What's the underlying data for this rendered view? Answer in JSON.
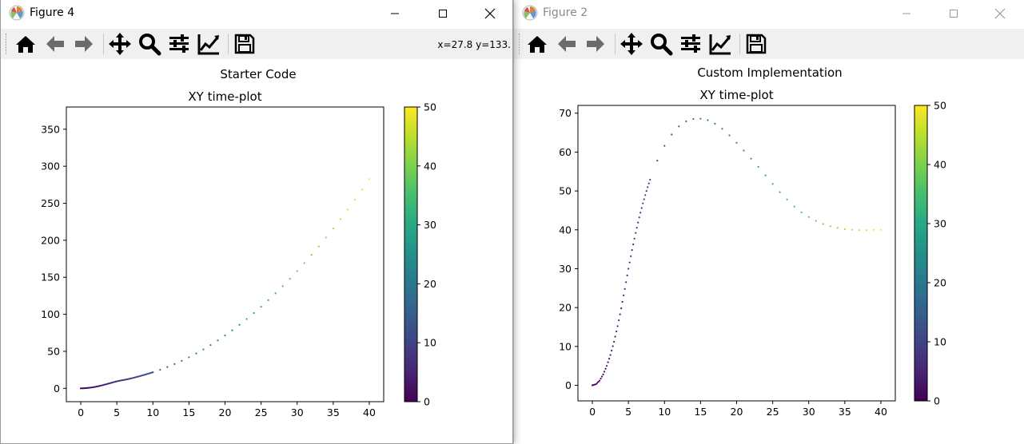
{
  "windows": [
    {
      "title": "Figure 4",
      "coords": "x=27.8 y=133.",
      "suptitle": "Starter Code",
      "chart_data": {
        "type": "scatter",
        "title": "XY time-plot",
        "xlabel": "",
        "ylabel": "",
        "xlim": [
          -2,
          42
        ],
        "ylim": [
          -18,
          380
        ],
        "xticks": [
          0,
          5,
          10,
          15,
          20,
          25,
          30,
          35,
          40
        ],
        "yticks": [
          0,
          50,
          100,
          150,
          200,
          250,
          300,
          350
        ],
        "x": [
          0,
          0.5,
          1,
          1.5,
          2,
          2.5,
          3,
          3.5,
          4,
          4.5,
          5,
          5.5,
          6,
          6.5,
          7,
          7.5,
          8,
          8.5,
          9,
          9.5,
          10,
          11,
          12,
          13,
          14,
          15,
          16,
          17,
          18,
          19,
          20,
          21,
          22,
          23,
          24,
          25,
          26,
          27,
          28,
          29,
          30,
          31,
          32,
          33,
          34,
          35,
          36,
          37,
          38,
          39,
          40
        ],
        "y": [
          0,
          0.2,
          0.6,
          1.2,
          2,
          3,
          4.2,
          5.5,
          6.8,
          8.2,
          9.5,
          10.5,
          11.4,
          12.4,
          13.5,
          14.7,
          16,
          17.4,
          18.8,
          20.2,
          21.8,
          25.1,
          28.8,
          32.8,
          37.2,
          42,
          47.1,
          52.6,
          58.5,
          64.8,
          71.4,
          78.4,
          85.8,
          93.6,
          101.7,
          110.2,
          119.1,
          128.4,
          138,
          148,
          158.4,
          169.2,
          180.3,
          191.8,
          203.7,
          215.9,
          228.5,
          241.5,
          254.8,
          268.5,
          282.6
        ]
      },
      "colorbar": {
        "min": 0,
        "max": 50,
        "ticks": [
          0,
          10,
          20,
          30,
          40,
          50
        ]
      }
    },
    {
      "title": "Figure 2",
      "suptitle": "Custom Implementation",
      "chart_data": {
        "type": "scatter",
        "title": "XY time-plot",
        "xlabel": "",
        "ylabel": "",
        "xlim": [
          -2,
          42
        ],
        "ylim": [
          -4,
          72
        ],
        "xticks": [
          0,
          5,
          10,
          15,
          20,
          25,
          30,
          35,
          40
        ],
        "yticks": [
          0,
          10,
          20,
          30,
          40,
          50,
          60,
          70
        ],
        "x": [
          0,
          0.5,
          1,
          1.5,
          2,
          2.5,
          3,
          3.5,
          4,
          4.5,
          5,
          5.5,
          6,
          6.5,
          7,
          7.5,
          8,
          9,
          10,
          11,
          12,
          13,
          14,
          15,
          16,
          17,
          18,
          19,
          20,
          21,
          22,
          23,
          24,
          25,
          26,
          27,
          28,
          29,
          30,
          31,
          32,
          33,
          34,
          35,
          36,
          37,
          38,
          39,
          40
        ],
        "y": [
          0,
          0.3,
          1.2,
          2.8,
          5,
          7.8,
          11.2,
          15.2,
          19.8,
          24.8,
          30,
          34.8,
          39.2,
          43.2,
          46.8,
          50,
          52.9,
          57.8,
          61.6,
          64.5,
          66.6,
          67.9,
          68.5,
          68.6,
          68.2,
          67.3,
          66,
          64.3,
          62.4,
          60.4,
          58.3,
          56.2,
          54,
          51.8,
          49.7,
          47.8,
          46,
          44.5,
          43.3,
          42.3,
          41.5,
          40.9,
          40.5,
          40.2,
          40,
          39.9,
          39.9,
          40,
          40
        ]
      },
      "colorbar": {
        "min": 0,
        "max": 50,
        "ticks": [
          0,
          10,
          20,
          30,
          40,
          50
        ]
      }
    }
  ],
  "toolbar_icons": [
    "home-icon",
    "back-arrow-icon",
    "forward-arrow-icon",
    "pan-icon",
    "zoom-icon",
    "subplots-icon",
    "edit-axis-icon",
    "save-icon"
  ]
}
